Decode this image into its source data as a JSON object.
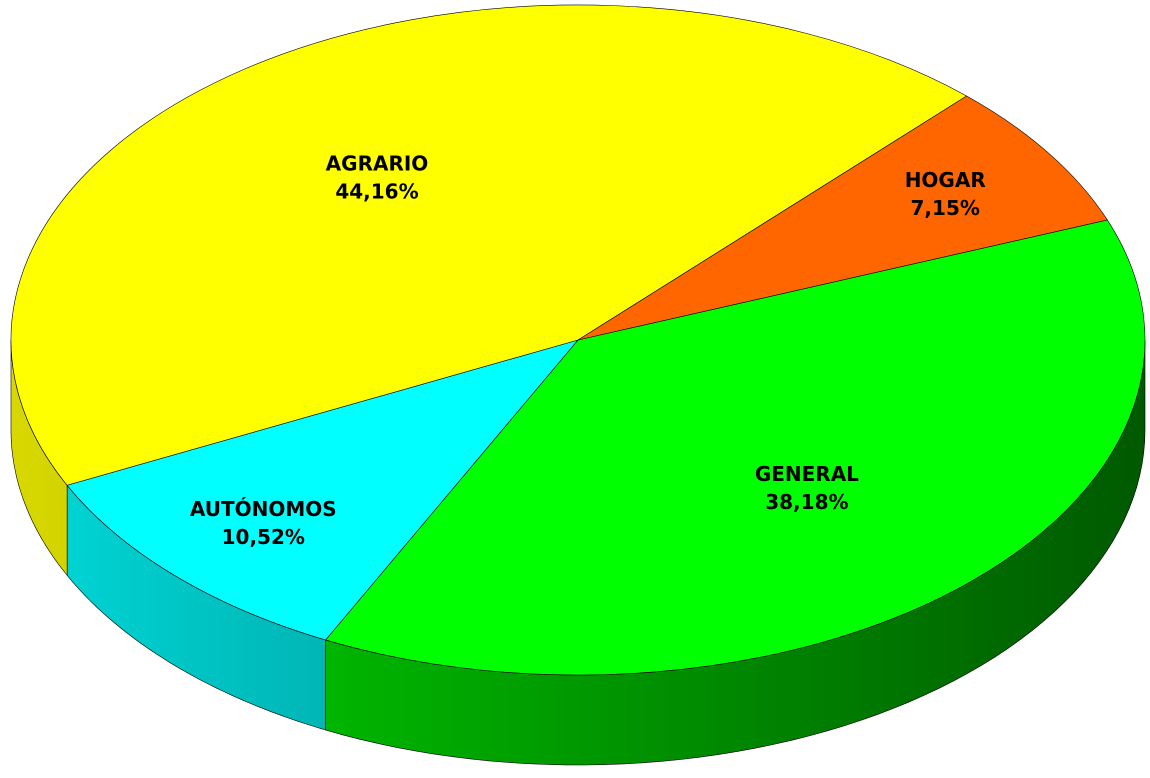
{
  "chart_data": {
    "type": "pie",
    "categories": [
      "GENERAL",
      "AUTÓNOMOS",
      "AGRARIO",
      "HOGAR"
    ],
    "values": [
      38.18,
      10.52,
      44.16,
      7.15
    ],
    "value_labels": [
      "38,18%",
      "10,52%",
      "44,16%",
      "7,15%"
    ],
    "colors": [
      "#00ff00",
      "#00ffff",
      "#ffff00",
      "#ff6600"
    ]
  }
}
